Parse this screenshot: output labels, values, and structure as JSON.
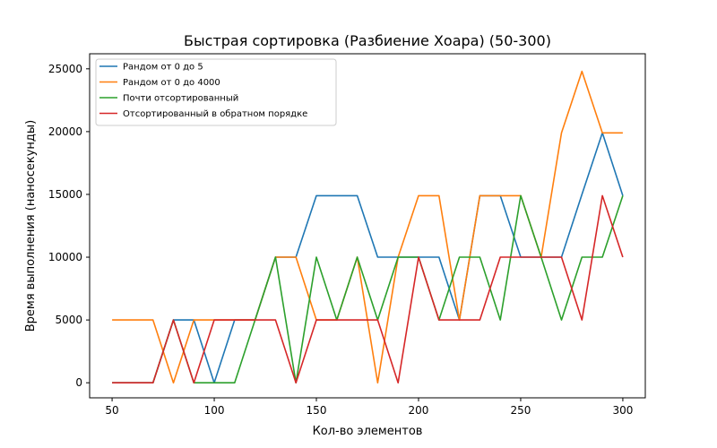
{
  "chart_data": {
    "type": "line",
    "title": "Быстрая сортировка (Разбиение Хоара) (50-300)",
    "xlabel": "Кол-во элементов",
    "ylabel": "Время выполнения (наносекунды)",
    "xlim": [
      39,
      311
    ],
    "ylim": [
      -1200,
      26200
    ],
    "xticks": [
      50,
      100,
      150,
      200,
      250,
      300
    ],
    "yticks": [
      0,
      5000,
      10000,
      15000,
      20000,
      25000
    ],
    "grid": false,
    "legend_position": "top-left",
    "x": [
      50,
      60,
      70,
      80,
      90,
      100,
      110,
      120,
      130,
      140,
      150,
      160,
      170,
      180,
      190,
      200,
      210,
      220,
      230,
      240,
      250,
      260,
      270,
      280,
      290,
      300
    ],
    "series": [
      {
        "name": "Рандом от 0 до 5",
        "color": "#1f77b4",
        "values": [
          0,
          0,
          0,
          5000,
          5000,
          0,
          5000,
          5000,
          10000,
          10000,
          14900,
          14900,
          14900,
          10000,
          10000,
          10000,
          10000,
          5000,
          14900,
          14900,
          10000,
          10000,
          10000,
          15000,
          19900,
          14900
        ]
      },
      {
        "name": "Рандом от 0 до 4000",
        "color": "#ff7f0e",
        "values": [
          5000,
          5000,
          5000,
          0,
          5000,
          5000,
          5000,
          5000,
          10000,
          10000,
          5000,
          5000,
          10000,
          0,
          10000,
          14900,
          14900,
          5000,
          14900,
          14900,
          14900,
          10000,
          19900,
          24800,
          19900,
          19900
        ]
      },
      {
        "name": "Почти отсортированный",
        "color": "#2ca02c",
        "values": [
          0,
          0,
          0,
          5000,
          0,
          0,
          0,
          5000,
          10000,
          0,
          10000,
          5000,
          10000,
          5000,
          10000,
          10000,
          5000,
          10000,
          10000,
          5000,
          14900,
          10000,
          5000,
          10000,
          10000,
          14900
        ]
      },
      {
        "name": "Отсортированный в обратном порядке",
        "color": "#d62728",
        "values": [
          0,
          0,
          0,
          5000,
          0,
          5000,
          5000,
          5000,
          5000,
          0,
          5000,
          5000,
          5000,
          5000,
          0,
          10000,
          5000,
          5000,
          5000,
          10000,
          10000,
          10000,
          10000,
          5000,
          14900,
          10000
        ]
      }
    ]
  }
}
